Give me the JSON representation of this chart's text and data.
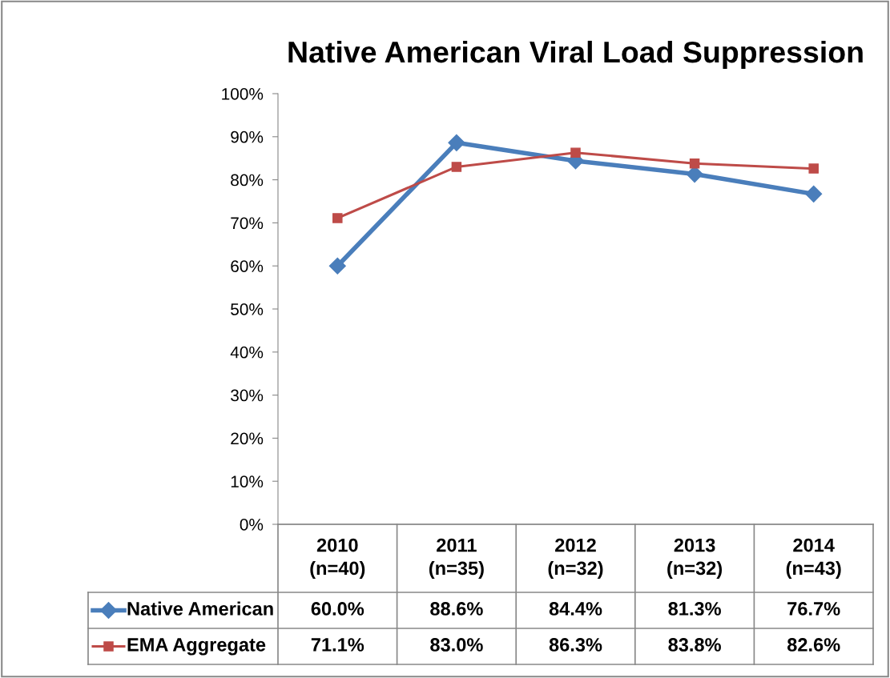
{
  "chart_data": {
    "type": "line",
    "title": "Native American Viral Load Suppression",
    "categories": [
      "2010\n(n=40)",
      "2011\n(n=35)",
      "2012\n(n=32)",
      "2013\n(n=32)",
      "2014\n(n=43)"
    ],
    "series": [
      {
        "name": "Native American",
        "color": "#4a7ebb",
        "marker": "diamond",
        "values": [
          60.0,
          88.6,
          84.4,
          81.3,
          76.7
        ],
        "value_labels": [
          "60.0%",
          "88.6%",
          "84.4%",
          "81.3%",
          "76.7%"
        ]
      },
      {
        "name": "EMA Aggregate",
        "color": "#be4b48",
        "marker": "square",
        "values": [
          71.1,
          83.0,
          86.3,
          83.8,
          82.6
        ],
        "value_labels": [
          "71.1%",
          "83.0%",
          "86.3%",
          "83.8%",
          "82.6%"
        ]
      }
    ],
    "ylim": [
      0,
      100
    ],
    "yticks": [
      {
        "value": 0,
        "label": "0%"
      },
      {
        "value": 10,
        "label": "10%"
      },
      {
        "value": 20,
        "label": "20%"
      },
      {
        "value": 30,
        "label": "30%"
      },
      {
        "value": 40,
        "label": "40%"
      },
      {
        "value": 50,
        "label": "50%"
      },
      {
        "value": 60,
        "label": "60%"
      },
      {
        "value": 70,
        "label": "70%"
      },
      {
        "value": 80,
        "label": "80%"
      },
      {
        "value": 90,
        "label": "90%"
      },
      {
        "value": 100,
        "label": "100%"
      }
    ],
    "data_labels": true,
    "legend": "bottom left",
    "grid": false
  }
}
